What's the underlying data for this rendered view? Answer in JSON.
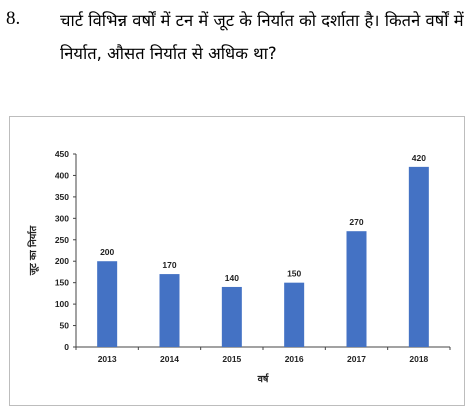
{
  "question": {
    "number": "8.",
    "text": "चार्ट विभिन्न वर्षों में टन में जूट के निर्यात को दर्शाता है। कितने वर्षों में निर्यात, औसत निर्यात से अधिक था?"
  },
  "chart_data": {
    "type": "bar",
    "categories": [
      "2013",
      "2014",
      "2015",
      "2016",
      "2017",
      "2018"
    ],
    "series": [
      {
        "values": [
          200,
          170,
          140,
          150,
          270,
          420
        ]
      }
    ],
    "data_labels": [
      "200",
      "170",
      "140",
      "150",
      "270",
      "420"
    ],
    "xlabel": "वर्ष",
    "ylabel": "जूट का निर्यात",
    "ylim": [
      0,
      450
    ],
    "yticks": [
      0,
      50,
      100,
      150,
      200,
      250,
      300,
      350,
      400,
      450
    ],
    "grid": false,
    "bar_color": "#4472c4"
  }
}
